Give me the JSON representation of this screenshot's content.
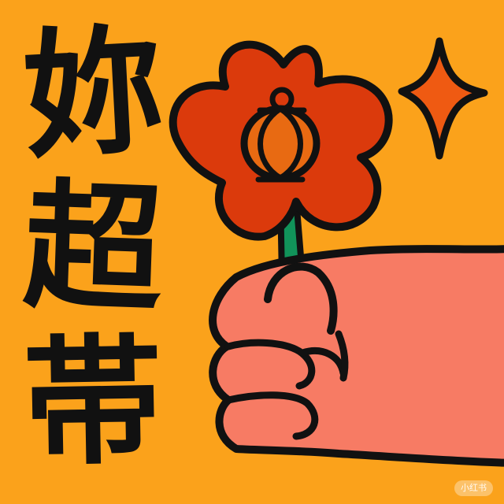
{
  "colors": {
    "background": "#FBA21B",
    "petals": "#DB3A0C",
    "lantern": "#E86A12",
    "sparkle": "#EF5A12",
    "stem": "#11935A",
    "hand": "#F77B64",
    "outline": "#111111"
  },
  "headline": {
    "char_1": "妳",
    "char_2": "超",
    "char_3": "帯"
  },
  "icons": {
    "flower": "flower-icon",
    "lantern": "lantern-icon",
    "sparkle": "sparkle-icon",
    "hand": "hand-icon"
  },
  "watermark": {
    "text": "小红书"
  }
}
